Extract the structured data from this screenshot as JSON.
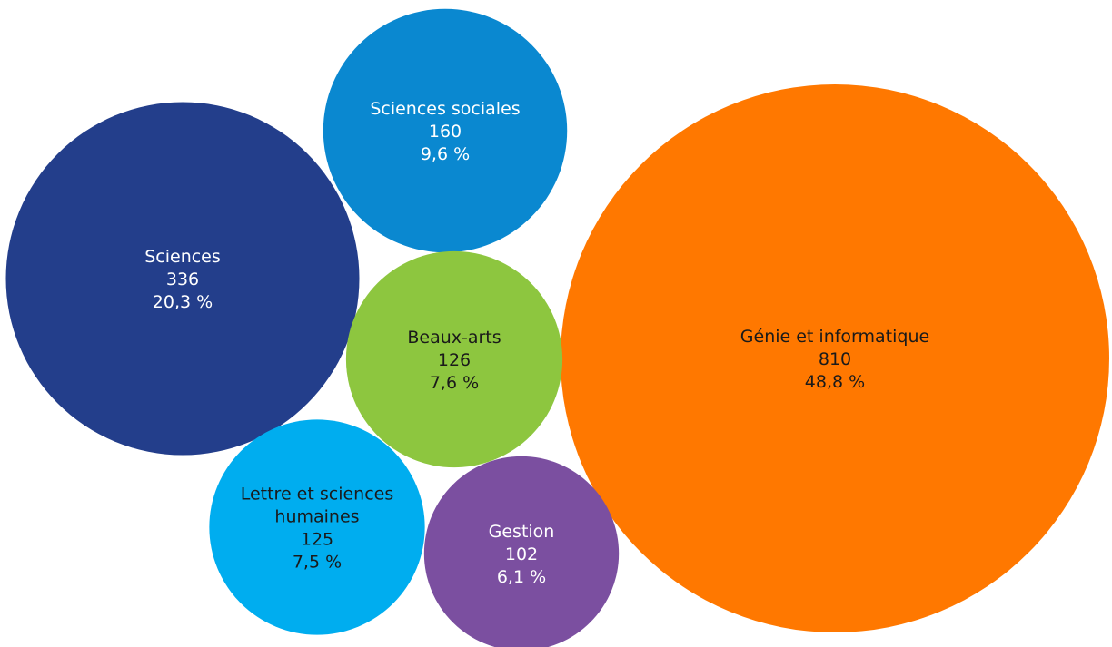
{
  "chart_data": {
    "type": "bubble",
    "title": "",
    "series": [
      {
        "category": "Génie et informatique",
        "label_lines": [
          "Génie et informatique"
        ],
        "value": 810,
        "value_text": "810",
        "percent": 48.8,
        "percent_text": "48,8 %",
        "color": "#FF7800",
        "text_color": "#1A1A1A"
      },
      {
        "category": "Sciences",
        "label_lines": [
          "Sciences"
        ],
        "value": 336,
        "value_text": "336",
        "percent": 20.3,
        "percent_text": "20,3 %",
        "color": "#233E8B",
        "text_color": "#FFFFFF"
      },
      {
        "category": "Sciences sociales",
        "label_lines": [
          "Sciences sociales"
        ],
        "value": 160,
        "value_text": "160",
        "percent": 9.6,
        "percent_text": "9,6 %",
        "color": "#0A88D0",
        "text_color": "#FFFFFF"
      },
      {
        "category": "Beaux-arts",
        "label_lines": [
          "Beaux-arts"
        ],
        "value": 126,
        "value_text": "126",
        "percent": 7.6,
        "percent_text": "7,6 %",
        "color": "#8DC63F",
        "text_color": "#1A1A1A"
      },
      {
        "category": "Lettre et sciences humaines",
        "label_lines": [
          "Lettre et sciences",
          "humaines"
        ],
        "value": 125,
        "value_text": "125",
        "percent": 7.5,
        "percent_text": "7,5 %",
        "color": "#00ADEF",
        "text_color": "#1A1A1A"
      },
      {
        "category": "Gestion",
        "label_lines": [
          "Gestion"
        ],
        "value": 102,
        "value_text": "102",
        "percent": 6.1,
        "percent_text": "6,1 %",
        "color": "#7B4FA0",
        "text_color": "#FFFFFF"
      }
    ]
  }
}
